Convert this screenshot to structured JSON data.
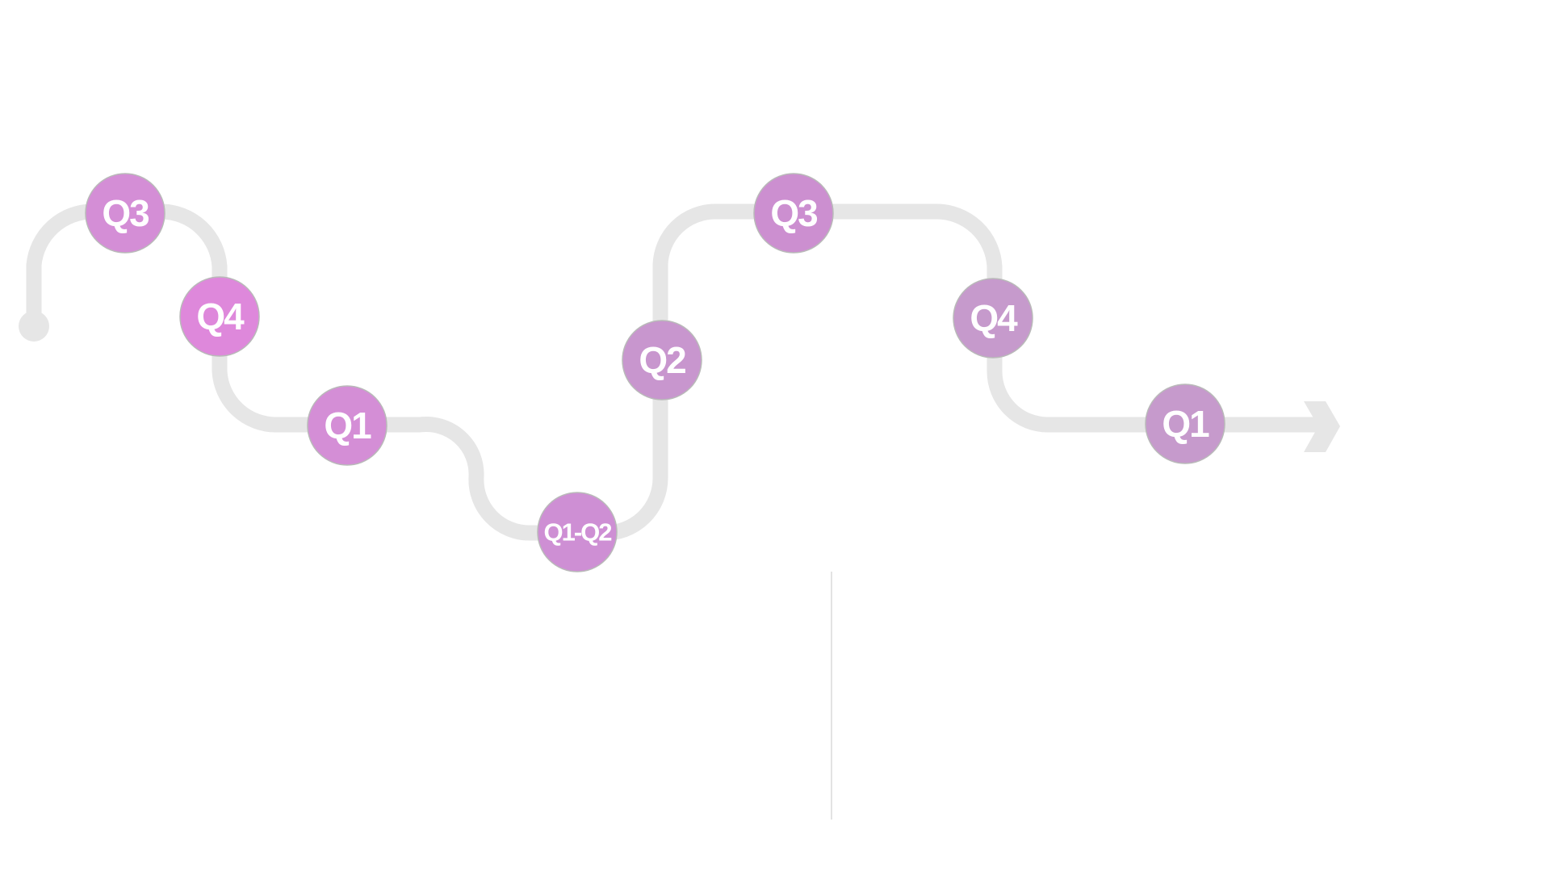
{
  "timeline": {
    "track_color": "#e6e6e6",
    "divider_color": "#e3e3e3",
    "milestones": [
      {
        "label": "Q3",
        "color": "#d48ed6"
      },
      {
        "label": "Q4",
        "color": "#de88db"
      },
      {
        "label": "Q1",
        "color": "#d48ed6"
      },
      {
        "label": "Q1-Q2",
        "color": "#ce8fd4"
      },
      {
        "label": "Q2",
        "color": "#c896ce"
      },
      {
        "label": "Q3",
        "color": "#cc8fd0"
      },
      {
        "label": "Q4",
        "color": "#c69acc"
      },
      {
        "label": "Q1",
        "color": "#c69acc"
      }
    ]
  }
}
